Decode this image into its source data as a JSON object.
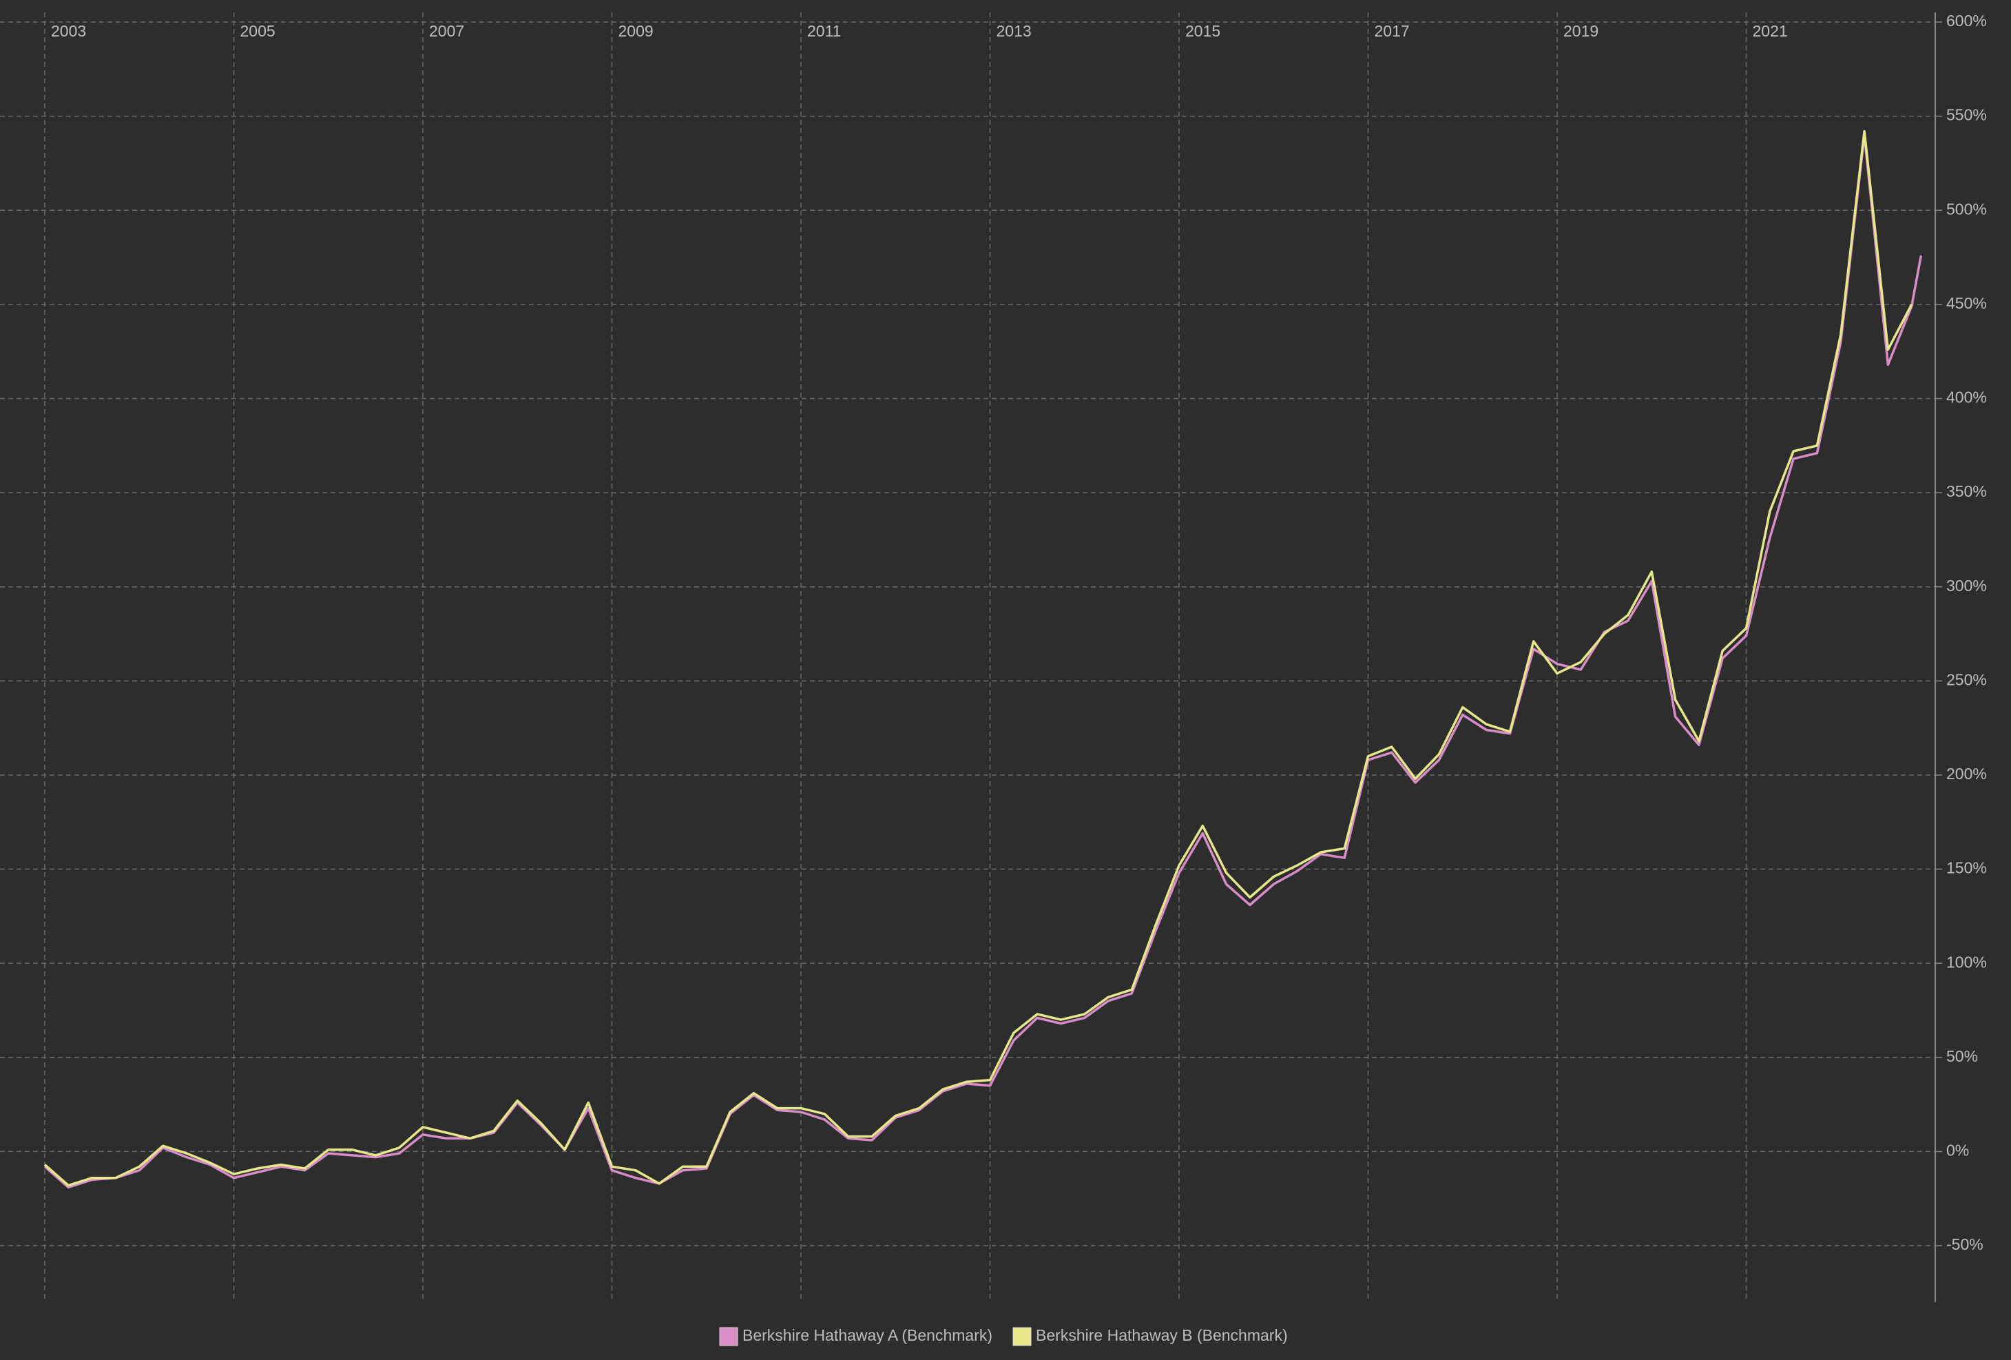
{
  "chart_data": {
    "type": "line",
    "x": [
      2003,
      2003.25,
      2003.5,
      2003.75,
      2004,
      2004.25,
      2004.5,
      2004.75,
      2005,
      2005.25,
      2005.5,
      2005.75,
      2006,
      2006.25,
      2006.5,
      2006.75,
      2007,
      2007.25,
      2007.5,
      2007.75,
      2008,
      2008.25,
      2008.5,
      2008.75,
      2009,
      2009.25,
      2009.5,
      2009.75,
      2010,
      2010.25,
      2010.5,
      2010.75,
      2011,
      2011.25,
      2011.5,
      2011.75,
      2012,
      2012.25,
      2012.5,
      2012.75,
      2013,
      2013.25,
      2013.5,
      2013.75,
      2014,
      2014.25,
      2014.5,
      2014.75,
      2015,
      2015.25,
      2015.5,
      2015.75,
      2016,
      2016.25,
      2016.5,
      2016.75,
      2017,
      2017.25,
      2017.5,
      2017.75,
      2018,
      2018.25,
      2018.5,
      2018.75,
      2019,
      2019.25,
      2019.5,
      2019.75,
      2020,
      2020.25,
      2020.5,
      2020.75,
      2021,
      2021.25,
      2021.5,
      2021.75,
      2022,
      2022.25,
      2022.5,
      2022.75,
      2022.85
    ],
    "series": [
      {
        "name": "Berkshire Hathaway A (Benchmark)",
        "color": "#d98cc8",
        "values": [
          -8,
          -19,
          -15,
          -14,
          -10,
          2,
          -3,
          -7,
          -14,
          -11,
          -8,
          -10,
          -1,
          -2,
          -3,
          -1,
          9,
          7,
          7,
          10,
          26,
          14,
          1,
          23,
          -10,
          -14,
          -17,
          -10,
          -9,
          20,
          30,
          22,
          21,
          17,
          7,
          6,
          18,
          22,
          32,
          36,
          35,
          59,
          71,
          68,
          71,
          80,
          84,
          117,
          148,
          169,
          142,
          131,
          142,
          149,
          158,
          156,
          208,
          212,
          196,
          208,
          232,
          224,
          222,
          267,
          259,
          256,
          276,
          282,
          303,
          231,
          216,
          262,
          274,
          326,
          368,
          371,
          430,
          540,
          418,
          449,
          476
        ]
      },
      {
        "name": "Berkshire Hathaway B (Benchmark)",
        "color": "#e6e68a",
        "values": [
          -7,
          -18,
          -14,
          -14,
          -8,
          3,
          -1,
          -6,
          -12,
          -9,
          -7,
          -9,
          1,
          1,
          -2,
          2,
          13,
          10,
          7,
          11,
          27,
          15,
          1,
          26,
          -8,
          -10,
          -17,
          -8,
          -8,
          21,
          31,
          23,
          23,
          20,
          8,
          8,
          19,
          23,
          33,
          37,
          38,
          63,
          73,
          70,
          73,
          82,
          86,
          120,
          152,
          173,
          148,
          135,
          146,
          152,
          159,
          161,
          210,
          215,
          198,
          211,
          236,
          227,
          223,
          271,
          254,
          260,
          275,
          285,
          308,
          240,
          218,
          266,
          278,
          340,
          372,
          375,
          434,
          542,
          426,
          450,
          null
        ]
      }
    ],
    "xlim": [
      2003,
      2023
    ],
    "xticks": [
      2003,
      2005,
      2007,
      2009,
      2011,
      2013,
      2015,
      2017,
      2019,
      2021
    ],
    "ylim": [
      -80,
      600
    ],
    "yticks": [
      {
        "value": -50,
        "label": "-50%"
      },
      {
        "value": 0,
        "label": "0%"
      },
      {
        "value": 50,
        "label": "50%"
      },
      {
        "value": 100,
        "label": "100%"
      },
      {
        "value": 150,
        "label": "150%"
      },
      {
        "value": 200,
        "label": "200%"
      },
      {
        "value": 250,
        "label": "250%"
      },
      {
        "value": 300,
        "label": "300%"
      },
      {
        "value": 350,
        "label": "350%"
      },
      {
        "value": 400,
        "label": "400%"
      },
      {
        "value": 450,
        "label": "450%"
      },
      {
        "value": 500,
        "label": "500%"
      },
      {
        "value": 550,
        "label": "550%"
      },
      {
        "value": 600,
        "label": "600%"
      }
    ],
    "grid": true
  }
}
